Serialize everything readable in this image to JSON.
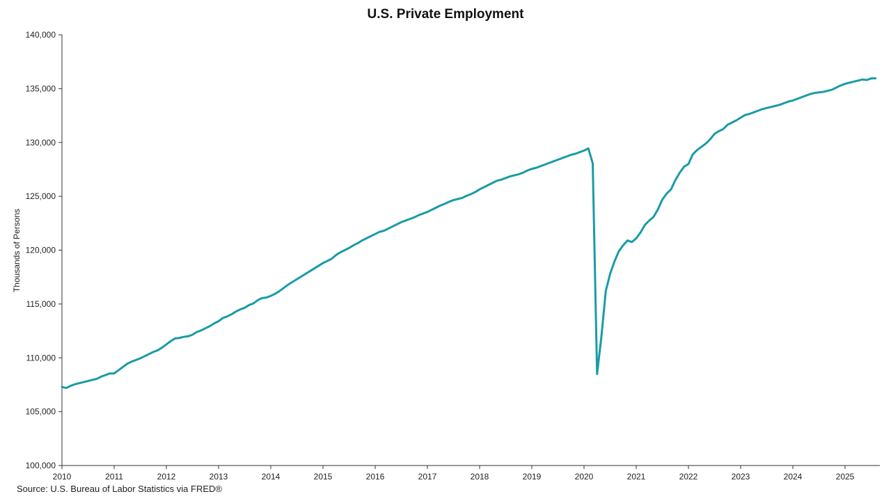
{
  "chart_data": {
    "type": "line",
    "title": "U.S. Private Employment",
    "xlabel": "",
    "ylabel": "Thousands of Persons",
    "source": "Source: U.S. Bureau of Labor Statistics via FRED®",
    "ylim": [
      100000,
      140000
    ],
    "yticks": [
      100000,
      105000,
      110000,
      115000,
      120000,
      125000,
      130000,
      135000,
      140000
    ],
    "yticklabels": [
      "100,000",
      "105,000",
      "110,000",
      "115,000",
      "120,000",
      "125,000",
      "130,000",
      "135,000",
      "140,000"
    ],
    "xlim": [
      "2010-01",
      "2025-09"
    ],
    "xticklabels": [
      "2010",
      "2011",
      "2012",
      "2013",
      "2014",
      "2015",
      "2016",
      "2017",
      "2018",
      "2019",
      "2020",
      "2021",
      "2022",
      "2023",
      "2024",
      "2025"
    ],
    "grid": false,
    "legend": "none",
    "line_color": "#1a9ba6",
    "series": [
      {
        "x": [
          "2010-01",
          "2010-02",
          "2010-03",
          "2010-04",
          "2010-05",
          "2010-06",
          "2010-07",
          "2010-08",
          "2010-09",
          "2010-10",
          "2010-11",
          "2010-12",
          "2011-01",
          "2011-02",
          "2011-03",
          "2011-04",
          "2011-05",
          "2011-06",
          "2011-07",
          "2011-08",
          "2011-09",
          "2011-10",
          "2011-11",
          "2011-12",
          "2012-01",
          "2012-02",
          "2012-03",
          "2012-04",
          "2012-05",
          "2012-06",
          "2012-07",
          "2012-08",
          "2012-09",
          "2012-10",
          "2012-11",
          "2012-12",
          "2013-01",
          "2013-02",
          "2013-03",
          "2013-04",
          "2013-05",
          "2013-06",
          "2013-07",
          "2013-08",
          "2013-09",
          "2013-10",
          "2013-11",
          "2013-12",
          "2014-01",
          "2014-02",
          "2014-03",
          "2014-04",
          "2014-05",
          "2014-06",
          "2014-07",
          "2014-08",
          "2014-09",
          "2014-10",
          "2014-11",
          "2014-12",
          "2015-01",
          "2015-02",
          "2015-03",
          "2015-04",
          "2015-05",
          "2015-06",
          "2015-07",
          "2015-08",
          "2015-09",
          "2015-10",
          "2015-11",
          "2015-12",
          "2016-01",
          "2016-02",
          "2016-03",
          "2016-04",
          "2016-05",
          "2016-06",
          "2016-07",
          "2016-08",
          "2016-09",
          "2016-10",
          "2016-11",
          "2016-12",
          "2017-01",
          "2017-02",
          "2017-03",
          "2017-04",
          "2017-05",
          "2017-06",
          "2017-07",
          "2017-08",
          "2017-09",
          "2017-10",
          "2017-11",
          "2017-12",
          "2018-01",
          "2018-02",
          "2018-03",
          "2018-04",
          "2018-05",
          "2018-06",
          "2018-07",
          "2018-08",
          "2018-09",
          "2018-10",
          "2018-11",
          "2018-12",
          "2019-01",
          "2019-02",
          "2019-03",
          "2019-04",
          "2019-05",
          "2019-06",
          "2019-07",
          "2019-08",
          "2019-09",
          "2019-10",
          "2019-11",
          "2019-12",
          "2020-01",
          "2020-02",
          "2020-03",
          "2020-04",
          "2020-05",
          "2020-06",
          "2020-07",
          "2020-08",
          "2020-09",
          "2020-10",
          "2020-11",
          "2020-12",
          "2021-01",
          "2021-02",
          "2021-03",
          "2021-04",
          "2021-05",
          "2021-06",
          "2021-07",
          "2021-08",
          "2021-09",
          "2021-10",
          "2021-11",
          "2021-12",
          "2022-01",
          "2022-02",
          "2022-03",
          "2022-04",
          "2022-05",
          "2022-06",
          "2022-07",
          "2022-08",
          "2022-09",
          "2022-10",
          "2022-11",
          "2022-12",
          "2023-01",
          "2023-02",
          "2023-03",
          "2023-04",
          "2023-05",
          "2023-06",
          "2023-07",
          "2023-08",
          "2023-09",
          "2023-10",
          "2023-11",
          "2023-12",
          "2024-01",
          "2024-02",
          "2024-03",
          "2024-04",
          "2024-05",
          "2024-06",
          "2024-07",
          "2024-08",
          "2024-09",
          "2024-10",
          "2024-11",
          "2024-12",
          "2025-01",
          "2025-02",
          "2025-03",
          "2025-04",
          "2025-05",
          "2025-06",
          "2025-07",
          "2025-08"
        ],
        "values": [
          107300,
          107200,
          107400,
          107550,
          107650,
          107750,
          107850,
          107950,
          108050,
          108250,
          108400,
          108550,
          108550,
          108850,
          109150,
          109450,
          109650,
          109800,
          109950,
          110150,
          110350,
          110550,
          110700,
          110950,
          111250,
          111550,
          111800,
          111850,
          111950,
          112000,
          112150,
          112400,
          112550,
          112750,
          112950,
          113200,
          113400,
          113700,
          113850,
          114050,
          114300,
          114500,
          114650,
          114900,
          115050,
          115350,
          115550,
          115600,
          115750,
          115950,
          116200,
          116500,
          116800,
          117050,
          117300,
          117550,
          117800,
          118050,
          118300,
          118550,
          118800,
          119000,
          119200,
          119550,
          119800,
          120000,
          120200,
          120450,
          120650,
          120900,
          121100,
          121300,
          121500,
          121700,
          121800,
          122000,
          122200,
          122400,
          122600,
          122750,
          122900,
          123050,
          123250,
          123400,
          123550,
          123750,
          123950,
          124150,
          124300,
          124500,
          124650,
          124750,
          124850,
          125050,
          125200,
          125400,
          125650,
          125850,
          126050,
          126250,
          126450,
          126550,
          126700,
          126850,
          126950,
          127050,
          127200,
          127400,
          127550,
          127650,
          127800,
          127950,
          128100,
          128250,
          128400,
          128550,
          128700,
          128850,
          128950,
          129100,
          129250,
          129450,
          128050,
          108500,
          112000,
          116200,
          117800,
          118950,
          119900,
          120450,
          120900,
          120750,
          121100,
          121650,
          122350,
          122750,
          123100,
          123800,
          124700,
          125250,
          125650,
          126500,
          127200,
          127750,
          128000,
          128900,
          129300,
          129600,
          129900,
          130300,
          130800,
          131050,
          131250,
          131650,
          131850,
          132050,
          132300,
          132550,
          132650,
          132800,
          132950,
          133100,
          133200,
          133300,
          133400,
          133500,
          133650,
          133800,
          133900,
          134050,
          134200,
          134350,
          134500,
          134600,
          134650,
          134700,
          134800,
          134900,
          135100,
          135300,
          135450,
          135550,
          135650,
          135750,
          135850,
          135800,
          135950,
          135950
        ]
      }
    ]
  }
}
